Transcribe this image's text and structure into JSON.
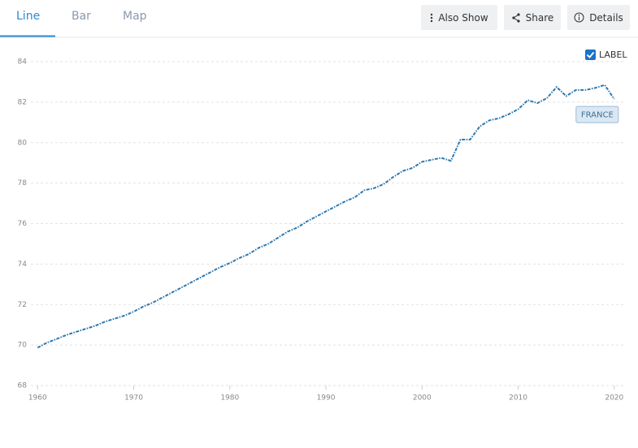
{
  "tabs": [
    "Line",
    "Bar",
    "Map"
  ],
  "buttons": [
    "Also Show",
    "Share",
    "Details"
  ],
  "label_toggle": "LABEL",
  "chart_data": {
    "type": "line",
    "x": [
      1960,
      1961,
      1962,
      1963,
      1964,
      1965,
      1966,
      1967,
      1968,
      1969,
      1970,
      1971,
      1972,
      1973,
      1974,
      1975,
      1976,
      1977,
      1978,
      1979,
      1980,
      1981,
      1982,
      1983,
      1984,
      1985,
      1986,
      1987,
      1988,
      1989,
      1990,
      1991,
      1992,
      1993,
      1994,
      1995,
      1996,
      1997,
      1998,
      1999,
      2000,
      2001,
      2002,
      2003,
      2004,
      2005,
      2006,
      2007,
      2008,
      2009,
      2010,
      2011,
      2012,
      2013,
      2014,
      2015,
      2016,
      2017,
      2018,
      2019,
      2020
    ],
    "series": [
      {
        "name": "FRANCE",
        "color": "#2e77ae",
        "values": [
          69.87,
          70.12,
          70.3,
          70.5,
          70.65,
          70.8,
          70.95,
          71.15,
          71.3,
          71.45,
          71.65,
          71.9,
          72.1,
          72.35,
          72.6,
          72.85,
          73.1,
          73.35,
          73.6,
          73.85,
          74.05,
          74.3,
          74.5,
          74.8,
          75.0,
          75.3,
          75.6,
          75.8,
          76.1,
          76.35,
          76.6,
          76.85,
          77.1,
          77.3,
          77.65,
          77.75,
          77.95,
          78.3,
          78.6,
          78.75,
          79.05,
          79.15,
          79.25,
          79.1,
          80.15,
          80.15,
          80.8,
          81.1,
          81.2,
          81.4,
          81.65,
          82.1,
          81.95,
          82.2,
          82.75,
          82.3,
          82.6,
          82.6,
          82.7,
          82.85,
          82.15
        ]
      }
    ],
    "xlim": [
      1959.3,
      2021.2
    ],
    "xticks": [
      1960,
      1970,
      1980,
      1990,
      2000,
      2010,
      2020
    ],
    "ylim": [
      68,
      84
    ],
    "yticks": [
      68,
      70,
      72,
      74,
      76,
      78,
      80,
      82,
      84
    ],
    "grid": true
  }
}
